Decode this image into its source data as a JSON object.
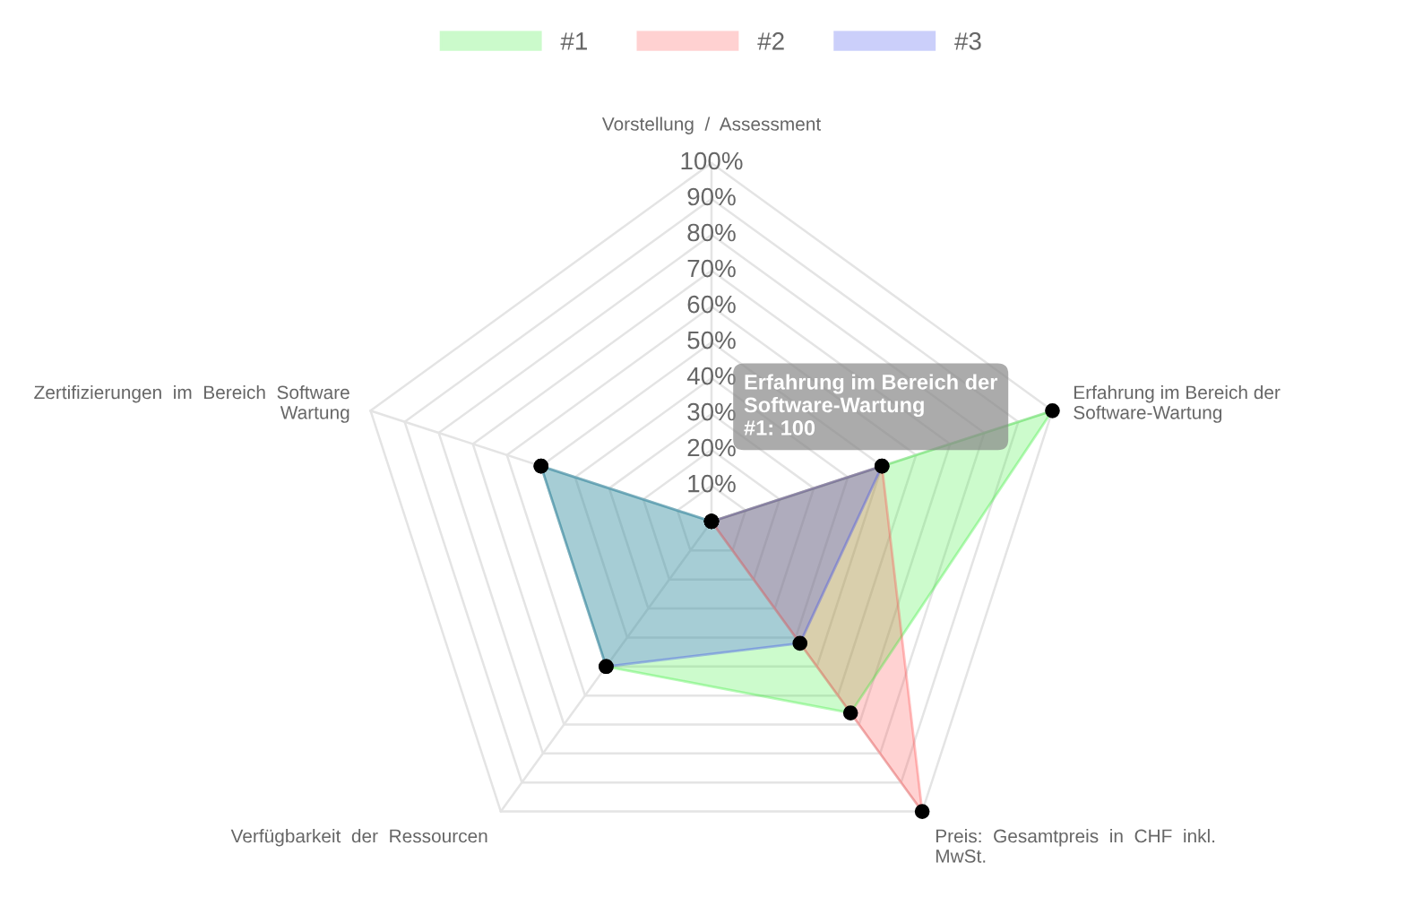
{
  "chart_data": {
    "type": "radar",
    "categories": [
      "Vorstellung  /  Assessment",
      "Erfahrung im Bereich der\nSoftware-Wartung",
      "Preis:  Gesamtpreis  in  CHF  inkl.\nMwSt.",
      "Verfügbarkeit  der  Ressourcen",
      "Zertifizierungen  im  Bereich  Software\nWartung"
    ],
    "series": [
      {
        "name": "#1",
        "color": "#33ee33",
        "values": [
          0,
          100,
          66,
          50,
          50
        ]
      },
      {
        "name": "#2",
        "color": "#ff4d4d",
        "values": [
          0,
          50,
          100,
          0,
          0
        ]
      },
      {
        "name": "#3",
        "color": "#3344ee",
        "values": [
          0,
          50,
          42,
          50,
          50
        ]
      }
    ],
    "ylim": [
      0,
      100
    ],
    "yticks": [
      {
        "value": 10,
        "label": "10%"
      },
      {
        "value": 20,
        "label": "20%"
      },
      {
        "value": 30,
        "label": "30%"
      },
      {
        "value": 40,
        "label": "40%"
      },
      {
        "value": 50,
        "label": "50%"
      },
      {
        "value": 60,
        "label": "60%"
      },
      {
        "value": 70,
        "label": "70%"
      },
      {
        "value": 80,
        "label": "80%"
      },
      {
        "value": 90,
        "label": "90%"
      },
      {
        "value": 100,
        "label": "100%"
      }
    ],
    "annotations": [
      "Erfahrung im Bereich der\nSoftware-Wartung\n#1: 100"
    ],
    "marker": "circle",
    "grid": true,
    "legend": "top"
  }
}
